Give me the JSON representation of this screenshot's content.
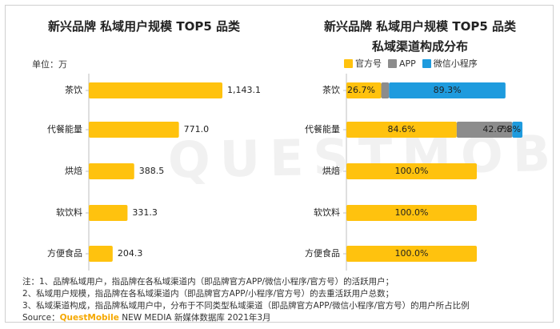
{
  "colors": {
    "official": "#ffc20e",
    "app": "#8c8c8c",
    "miniprogram": "#1e9bde",
    "label_text": "#222222"
  },
  "watermark": "QUESTMOBILE",
  "left_chart": {
    "title": "新兴品牌 私域用户规模 TOP5 品类",
    "unit": "单位：万"
  },
  "right_chart": {
    "title_line1": "新兴品牌 私域用户规模 TOP5 品类",
    "title_line2": "私域渠道构成分布"
  },
  "notes": {
    "line1": "注：1、品牌私域用户，指品牌在各私域渠道内（即品牌官方APP/微信小程序/官方号）的活跃用户；",
    "line2": "2、私域用户规模，指品牌在各私域渠道内（即品牌官方APP/小程序/官方号）的去重活跃用户总数；",
    "line3": "3、私域渠道构成，指品牌私域用户中，分布于不同类型私域渠道（即品牌官方APP/微信小程序/官方号）的用户所占比例",
    "source_prefix": "Source：",
    "source_brand": "QuestMobile",
    "source_rest": " NEW MEDIA 新媒体数据库 2021年3月"
  },
  "chart_data": [
    {
      "type": "bar",
      "orientation": "horizontal",
      "title": "新兴品牌 私域用户规模 TOP5 品类",
      "unit": "单位：万",
      "categories": [
        "茶饮",
        "代餐能量",
        "烘焙",
        "软饮料",
        "方便食品"
      ],
      "values": [
        1143.1,
        771.0,
        388.5,
        331.3,
        204.3
      ],
      "value_labels": [
        "1,143.1",
        "771.0",
        "388.5",
        "331.3",
        "204.3"
      ],
      "xlim": [
        0,
        1143.1
      ],
      "grid": false
    },
    {
      "type": "bar",
      "orientation": "horizontal",
      "stacked": true,
      "title": "新兴品牌 私域用户规模 TOP5 品类 私域渠道构成分布",
      "legend_position": "top",
      "categories": [
        "茶饮",
        "代餐能量",
        "烘焙",
        "软饮料",
        "方便食品"
      ],
      "series": [
        {
          "name": "官方号",
          "values": [
            26.7,
            84.6,
            100.0,
            100.0,
            100.0
          ],
          "labels": [
            "26.7%",
            "84.6%",
            "100.0%",
            "100.0%",
            "100.0%"
          ]
        },
        {
          "name": "APP",
          "values": [
            6.0,
            42.6,
            0,
            0,
            0
          ],
          "labels": [
            "6.0%",
            "42.6%",
            "",
            "",
            ""
          ]
        },
        {
          "name": "微信小程序",
          "values": [
            89.3,
            7.8,
            0,
            0,
            0
          ],
          "labels": [
            "89.3%",
            "7.8%",
            "",
            "",
            ""
          ]
        }
      ],
      "bar_totals": [
        122.0,
        135.0,
        100.0,
        100.0,
        100.0
      ],
      "grid": false
    }
  ]
}
